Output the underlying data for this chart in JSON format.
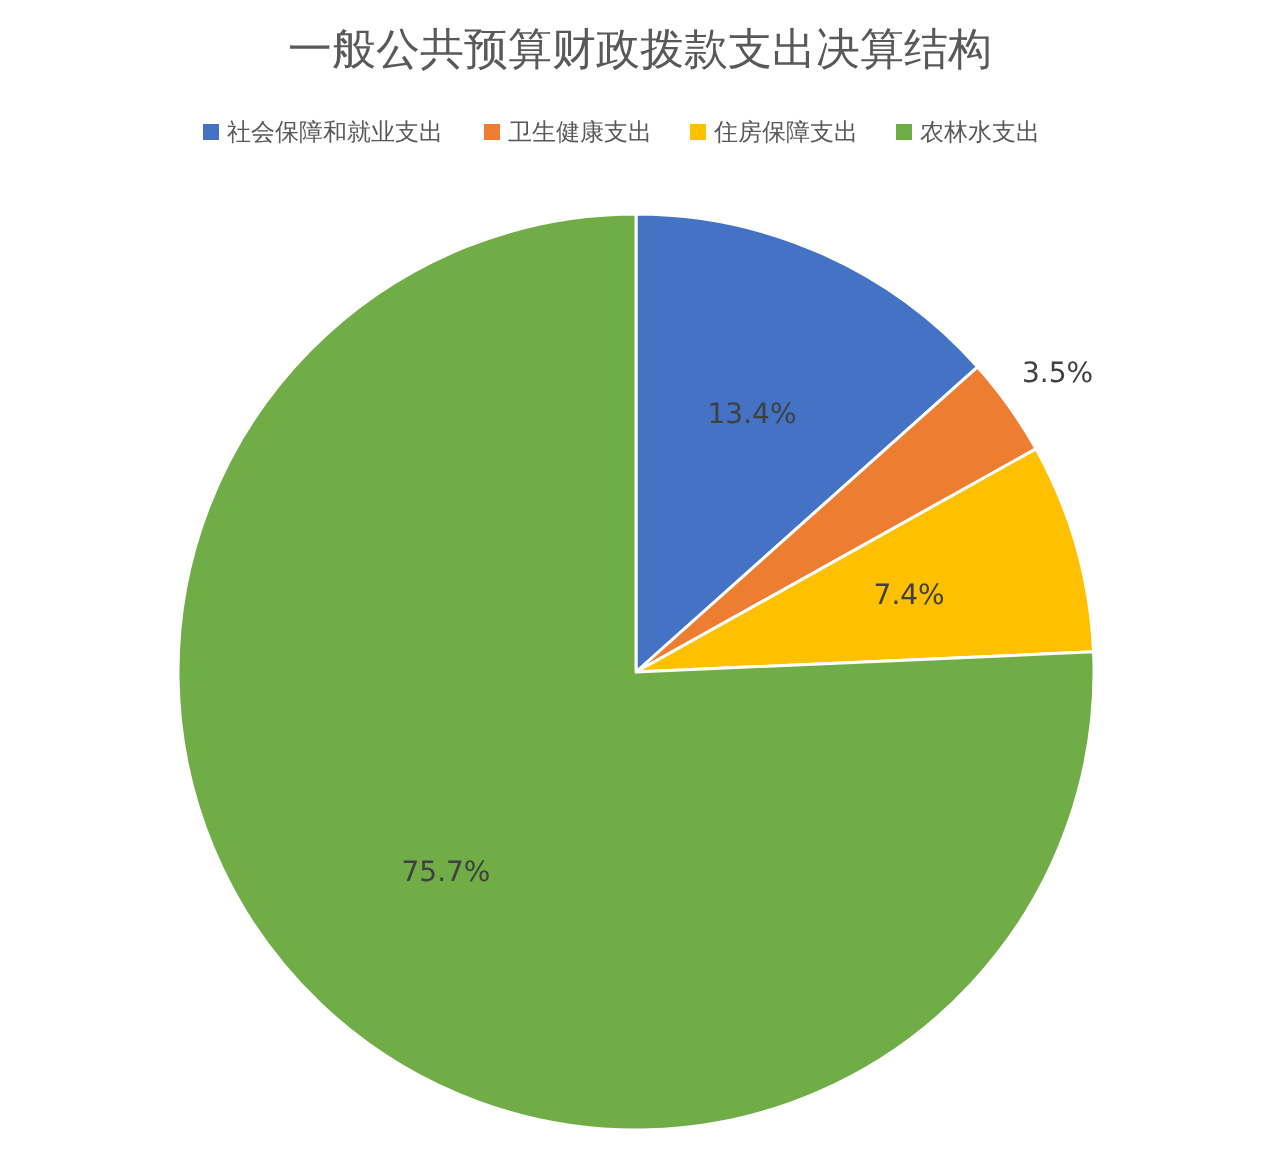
{
  "chart_data": {
    "type": "pie",
    "title": "一般公共预算财政拨款支出决算结构",
    "categories": [
      "社会保障和就业支出",
      "卫生健康支出",
      "住房保障支出",
      "农林水支出"
    ],
    "values": [
      13.4,
      3.5,
      7.4,
      75.7
    ],
    "value_labels": [
      "13.4%",
      "3.5%",
      "7.4%",
      "75.7%"
    ],
    "colors": [
      "#4472c4",
      "#ed7d31",
      "#ffc000",
      "#70ad47"
    ],
    "legend": "top"
  }
}
